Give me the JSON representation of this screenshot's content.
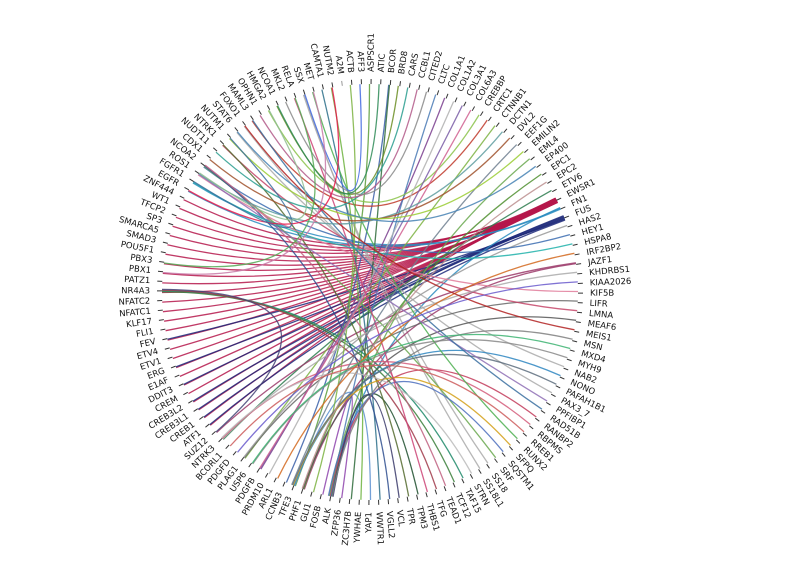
{
  "nodes": [
    "ACTB",
    "AFF3",
    "ASPSCR1",
    "ATIC",
    "BCOR",
    "BRD8",
    "CARS",
    "CCBL1",
    "CITED2",
    "CLTC",
    "COL1A1",
    "COL1A2",
    "COL3A1",
    "COL6A3",
    "CREBBP",
    "CRTC1",
    "CTNNB1",
    "DCTN1",
    "DVL2",
    "EEF1G",
    "EMILIN2",
    "EML4",
    "EP400",
    "EPC1",
    "EPC2",
    "ETV6",
    "EWSR1",
    "FN1",
    "FUS",
    "HAS2",
    "HEY1",
    "HSPA8",
    "IRF2BP2",
    "JAZF1",
    "KHDRBS1",
    "KIAA2026",
    "KIF5B",
    "LIFR",
    "LMNA",
    "MEAF6",
    "MEIS1",
    "MSN",
    "MXD4",
    "MYH9",
    "NAB2",
    "NONO",
    "PAFAH1B1",
    "PAX3_7",
    "PPFIBP1",
    "RAD51B",
    "RANBP2",
    "RBPMS",
    "RREB1",
    "RUNX2",
    "SFPQ",
    "SQSTM1",
    "SRF",
    "SS18",
    "SS18L1",
    "STRN",
    "TAF15",
    "TCF12",
    "TEAD1",
    "TFG",
    "THBS1",
    "TPM3",
    "TPR",
    "VCL",
    "VGLL2",
    "WWTR1",
    "YAP1",
    "YWHAE",
    "ZC3H7B",
    "ZFP36",
    "ALK",
    "FOSB",
    "GLI1",
    "PHF1",
    "TFE3",
    "CCNB3",
    "ARL1",
    "PRDM10",
    "PDGFB",
    "USP6",
    "PLAG1",
    "PDGFD",
    "BCORL1",
    "NTRK3",
    "SUZ12",
    "ATF1",
    "CREB1",
    "CREB3L1",
    "CREB3L2",
    "CREM",
    "DDIT3",
    "E1AF",
    "ERG",
    "ETV1",
    "ETV4",
    "FEV",
    "FLI1",
    "KLF17",
    "NFATC1",
    "NFATC2",
    "NR4A3",
    "PATZ1",
    "PBX1",
    "PBX3",
    "POU5F1",
    "SMAD3",
    "SMARCA5",
    "SP3",
    "TFCP2",
    "WT1",
    "ZNF444",
    "EGFR",
    "FGFR1",
    "ROS1",
    "NCOA2",
    "CDX1",
    "NUDT11",
    "NTRK1",
    "NUTM1",
    "STAT6",
    "FOXO1",
    "MAML3",
    "OPHN1",
    "HMGA2",
    "NCOA1",
    "MKL2",
    "RELA",
    "SSX",
    "MET",
    "CAMTA1",
    "NUTM2",
    "A2M"
  ],
  "links": [
    [
      26,
      89,
      "#b5174b"
    ],
    [
      26,
      90,
      "#b5174b"
    ],
    [
      26,
      93,
      "#b5174b"
    ],
    [
      26,
      94,
      "#b5174b"
    ],
    [
      26,
      95,
      "#b5174b"
    ],
    [
      26,
      96,
      "#b5174b"
    ],
    [
      26,
      97,
      "#b5174b"
    ],
    [
      26,
      98,
      "#b5174b"
    ],
    [
      26,
      99,
      "#b5174b"
    ],
    [
      26,
      100,
      "#b5174b"
    ],
    [
      26,
      101,
      "#b5174b"
    ],
    [
      26,
      102,
      "#b5174b"
    ],
    [
      26,
      103,
      "#b5174b"
    ],
    [
      26,
      104,
      "#b5174b"
    ],
    [
      26,
      105,
      "#b5174b"
    ],
    [
      26,
      106,
      "#b5174b"
    ],
    [
      26,
      107,
      "#b5174b"
    ],
    [
      26,
      108,
      "#b5174b"
    ],
    [
      26,
      109,
      "#b5174b"
    ],
    [
      26,
      110,
      "#b5174b"
    ],
    [
      26,
      111,
      "#b5174b"
    ],
    [
      26,
      112,
      "#b5174b"
    ],
    [
      26,
      113,
      "#b5174b"
    ],
    [
      26,
      114,
      "#b5174b"
    ],
    [
      26,
      91,
      "#b5174b"
    ],
    [
      26,
      92,
      "#b5174b"
    ],
    [
      28,
      94,
      "#1f2a7a"
    ],
    [
      28,
      92,
      "#1f2a7a"
    ],
    [
      28,
      91,
      "#1f2a7a"
    ],
    [
      28,
      96,
      "#1f2a7a"
    ],
    [
      28,
      99,
      "#1f2a7a"
    ],
    [
      28,
      89,
      "#1f2a7a"
    ],
    [
      28,
      90,
      "#1f2a7a"
    ],
    [
      27,
      74,
      "#2a8cbf"
    ],
    [
      27,
      115,
      "#2a8cbf"
    ],
    [
      27,
      116,
      "#2a8cbf"
    ],
    [
      57,
      131,
      "#aaaaaa"
    ],
    [
      58,
      131,
      "#aaaaaa"
    ],
    [
      47,
      124,
      "#aaaaaa"
    ],
    [
      2,
      78,
      "#5a9e3a"
    ],
    [
      10,
      82,
      "#7a3e8e"
    ],
    [
      25,
      87,
      "#2e7d4f"
    ],
    [
      44,
      123,
      "#aaaaaa"
    ],
    [
      65,
      74,
      "#1e4f2e"
    ],
    [
      9,
      74,
      "#4a7ab5"
    ],
    [
      50,
      74,
      "#c23b5a"
    ],
    [
      71,
      134,
      "#6db33f"
    ],
    [
      4,
      79,
      "#3a5fa8"
    ],
    [
      72,
      4,
      "#2e6b3a"
    ],
    [
      33,
      88,
      "#9b3a6a"
    ],
    [
      33,
      77,
      "#9b3a6a"
    ],
    [
      23,
      77,
      "#4f8f2f"
    ],
    [
      39,
      77,
      "#555555"
    ],
    [
      69,
      133,
      "#2c6e8a"
    ],
    [
      70,
      78,
      "#5a8fd0"
    ],
    [
      43,
      83,
      "#888888"
    ],
    [
      16,
      84,
      "#7cb342"
    ],
    [
      37,
      84,
      "#666666"
    ],
    [
      29,
      84,
      "#999999"
    ],
    [
      61,
      104,
      "#3a7f3a"
    ],
    [
      60,
      104,
      "#1e8a6a"
    ],
    [
      63,
      104,
      "#a03a4a"
    ],
    [
      30,
      118,
      "#3b6cb0"
    ],
    [
      56,
      118,
      "#6aa84f"
    ],
    [
      68,
      118,
      "#2f4f8f"
    ],
    [
      62,
      118,
      "#c06080"
    ],
    [
      0,
      76,
      "#7cb342"
    ],
    [
      73,
      75,
      "#8e44ad"
    ],
    [
      38,
      121,
      "#c44569"
    ],
    [
      66,
      121,
      "#556b2f"
    ],
    [
      34,
      87,
      "#aaaaaa"
    ],
    [
      51,
      87,
      "#d35c7a"
    ],
    [
      21,
      74,
      "#6aa84f"
    ],
    [
      55,
      74,
      "#4c6ebd"
    ],
    [
      67,
      74,
      "#3b3b6b"
    ],
    [
      59,
      87,
      "#bbbbbb"
    ],
    [
      14,
      127,
      "#8bc34a"
    ],
    [
      15,
      125,
      "#c0392b"
    ],
    [
      12,
      82,
      "#7b5ea7"
    ],
    [
      11,
      81,
      "#b0b0b0"
    ],
    [
      36,
      117,
      "#e07b9a"
    ],
    [
      45,
      78,
      "#2e86c1"
    ],
    [
      54,
      78,
      "#d4a017"
    ],
    [
      46,
      78,
      "#5d6d7e"
    ],
    [
      53,
      132,
      "#4caf50"
    ],
    [
      48,
      117,
      "#8e6fb5"
    ],
    [
      64,
      130,
      "#cc4477"
    ],
    [
      49,
      125,
      "#3a6fa0"
    ],
    [
      5,
      128,
      "#6b8e23"
    ],
    [
      6,
      120,
      "#2a9d8f"
    ],
    [
      7,
      126,
      "#b35a8a"
    ],
    [
      8,
      129,
      "#8a8a8a"
    ],
    [
      13,
      82,
      "#d06090"
    ],
    [
      17,
      117,
      "#5f9ea0"
    ],
    [
      18,
      119,
      "#a0522d"
    ],
    [
      19,
      78,
      "#708090"
    ],
    [
      20,
      122,
      "#9acd32"
    ],
    [
      22,
      123,
      "#4682b4"
    ],
    [
      24,
      77,
      "#bc8f8f"
    ],
    [
      31,
      116,
      "#20b2aa"
    ],
    [
      32,
      80,
      "#d2691e"
    ],
    [
      35,
      85,
      "#6a5acd"
    ],
    [
      40,
      124,
      "#b22222"
    ],
    [
      41,
      74,
      "#7f7f7f"
    ],
    [
      42,
      83,
      "#3cb371"
    ],
    [
      52,
      86,
      "#cd5c5c"
    ],
    [
      1,
      131,
      "#4169e1"
    ],
    [
      3,
      128,
      "#2e8b57"
    ],
    [
      115,
      134,
      "#e6194b"
    ],
    [
      116,
      122,
      "#3c6e9e"
    ],
    [
      117,
      127,
      "#8fbc8f"
    ],
    [
      104,
      88,
      "#444477"
    ],
    [
      106,
      132,
      "#c87aa8"
    ],
    [
      107,
      130,
      "#55aa55"
    ]
  ]
}
